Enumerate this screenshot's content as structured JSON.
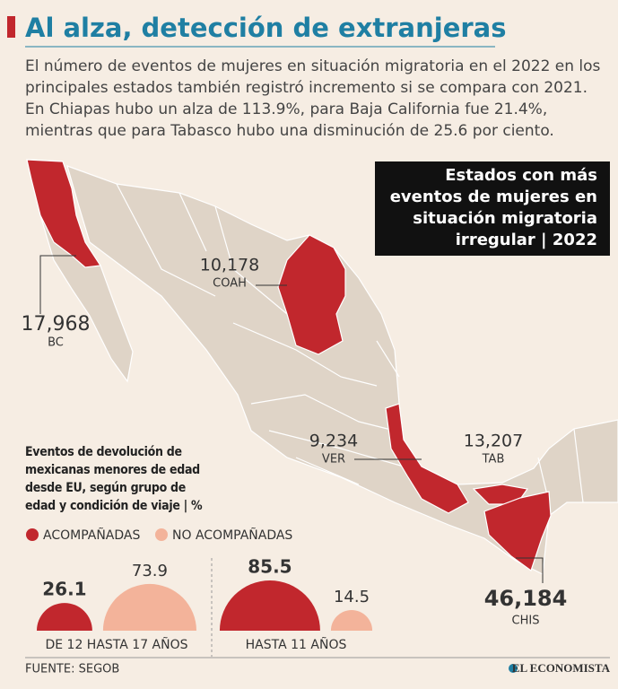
{
  "header": {
    "title": "Al alza, detección de extranjeras",
    "subtitle": "El número de eventos de mujeres en situación migratoria en el 2022 en los principales estados también registró incremento si se compara con 2021. En Chiapas hubo un alza de 113.9%, para Baja California fue 21.4%, mientras que para Tabasco hubo una disminución de 25.6 por ciento."
  },
  "map": {
    "title": "Estados con más eventos de mujeres en situación migratoria irregular | 2022",
    "states": [
      {
        "value": "17,968",
        "label": "BC"
      },
      {
        "value": "10,178",
        "label": "COAH"
      },
      {
        "value": "9,234",
        "label": "VER"
      },
      {
        "value": "13,207",
        "label": "TAB"
      },
      {
        "value": "46,184",
        "label": "CHIS"
      }
    ]
  },
  "chart_data": {
    "type": "semicircle",
    "title": "Eventos de devolución de mexicanas menores de edad desde EU, según grupo de edad y condición de viaje | %",
    "categories": [
      "DE 12 HASTA 17 AÑOS",
      "HASTA 11 AÑOS"
    ],
    "series": [
      {
        "name": "ACOMPAÑADAS",
        "color": "#c1272d",
        "values": [
          26.1,
          85.5
        ]
      },
      {
        "name": "NO ACOMPAÑADAS",
        "color": "#f3b39a",
        "values": [
          73.9,
          14.5
        ]
      }
    ]
  },
  "source": "FUENTE:  SEGOB",
  "brand": "EL ECONOMISTA"
}
